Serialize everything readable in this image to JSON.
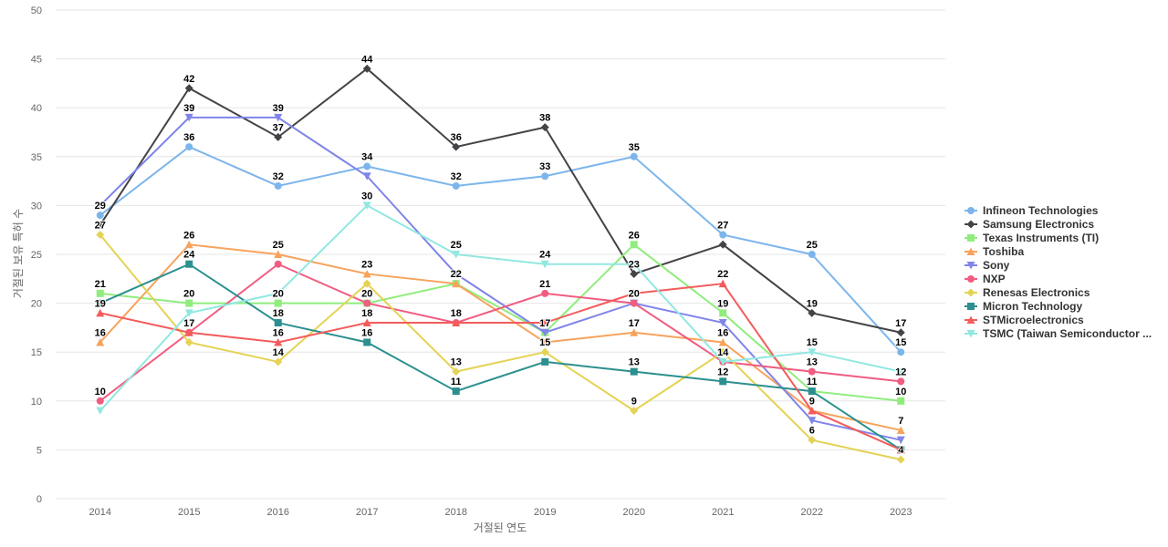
{
  "chart_data": {
    "type": "line",
    "title": "",
    "xlabel": "거절된 연도",
    "ylabel": "거절된 보유 특허 수",
    "ylim": [
      0,
      50
    ],
    "yticks": [
      0,
      5,
      10,
      15,
      20,
      25,
      30,
      35,
      40,
      45,
      50
    ],
    "grid": true,
    "legend_position": "right",
    "categories": [
      "2014",
      "2015",
      "2016",
      "2017",
      "2018",
      "2019",
      "2020",
      "2021",
      "2022",
      "2023"
    ],
    "series": [
      {
        "name": "Infineon Technologies",
        "color": "#7cb5ec",
        "marker": "circle",
        "values": [
          29,
          36,
          32,
          34,
          32,
          33,
          35,
          27,
          25,
          15
        ]
      },
      {
        "name": "Samsung Electronics",
        "color": "#434348",
        "marker": "diamond",
        "values": [
          28,
          42,
          37,
          44,
          36,
          38,
          23,
          26,
          19,
          17
        ]
      },
      {
        "name": "Texas Instruments (TI)",
        "color": "#90ed7d",
        "marker": "square",
        "values": [
          21,
          20,
          20,
          20,
          22,
          17,
          26,
          19,
          11,
          10
        ]
      },
      {
        "name": "Toshiba",
        "color": "#f7a35c",
        "marker": "triangle",
        "values": [
          16,
          26,
          25,
          23,
          22,
          16,
          17,
          16,
          9,
          7
        ]
      },
      {
        "name": "Sony",
        "color": "#8085e9",
        "marker": "triangle-down",
        "values": [
          30,
          39,
          39,
          33,
          23,
          17,
          20,
          18,
          8,
          6
        ]
      },
      {
        "name": "NXP",
        "color": "#f15c80",
        "marker": "circle",
        "values": [
          10,
          17,
          24,
          20,
          18,
          21,
          20,
          14,
          13,
          12
        ]
      },
      {
        "name": "Renesas Electronics",
        "color": "#e4d354",
        "marker": "diamond",
        "values": [
          27,
          16,
          14,
          22,
          13,
          15,
          9,
          15,
          6,
          4
        ]
      },
      {
        "name": "Micron Technology",
        "color": "#2b908f",
        "marker": "square",
        "values": [
          20,
          24,
          18,
          16,
          11,
          14,
          13,
          12,
          11,
          5
        ]
      },
      {
        "name": "STMicroelectronics",
        "color": "#f45b5b",
        "marker": "triangle",
        "values": [
          19,
          17,
          16,
          18,
          18,
          18,
          21,
          22,
          9,
          5
        ]
      },
      {
        "name": "TSMC (Taiwan Semiconductor ...",
        "color": "#91e8e1",
        "marker": "triangle-down",
        "values": [
          9,
          19,
          21,
          30,
          25,
          24,
          24,
          14,
          15,
          13
        ]
      }
    ],
    "data_labels": [
      {
        "x": "2014",
        "text": "29"
      },
      {
        "x": "2014",
        "text": "27"
      },
      {
        "x": "2014",
        "text": "21"
      },
      {
        "x": "2014",
        "text": "19"
      },
      {
        "x": "2014",
        "text": "16"
      },
      {
        "x": "2014",
        "text": "10"
      },
      {
        "x": "2015",
        "text": "42"
      },
      {
        "x": "2015",
        "text": "39"
      },
      {
        "x": "2015",
        "text": "36"
      },
      {
        "x": "2015",
        "text": "26"
      },
      {
        "x": "2015",
        "text": "24"
      },
      {
        "x": "2015",
        "text": "20"
      },
      {
        "x": "2015",
        "text": "17"
      },
      {
        "x": "2016",
        "text": "39"
      },
      {
        "x": "2016",
        "text": "37"
      },
      {
        "x": "2016",
        "text": "32"
      },
      {
        "x": "2016",
        "text": "25"
      },
      {
        "x": "2016",
        "text": "20"
      },
      {
        "x": "2016",
        "text": "18"
      },
      {
        "x": "2016",
        "text": "16"
      },
      {
        "x": "2016",
        "text": "14"
      },
      {
        "x": "2017",
        "text": "44"
      },
      {
        "x": "2017",
        "text": "34"
      },
      {
        "x": "2017",
        "text": "30"
      },
      {
        "x": "2017",
        "text": "23"
      },
      {
        "x": "2017",
        "text": "20"
      },
      {
        "x": "2017",
        "text": "18"
      },
      {
        "x": "2017",
        "text": "16"
      },
      {
        "x": "2018",
        "text": "36"
      },
      {
        "x": "2018",
        "text": "32"
      },
      {
        "x": "2018",
        "text": "25"
      },
      {
        "x": "2018",
        "text": "22"
      },
      {
        "x": "2018",
        "text": "18"
      },
      {
        "x": "2018",
        "text": "13"
      },
      {
        "x": "2018",
        "text": "11"
      },
      {
        "x": "2019",
        "text": "38"
      },
      {
        "x": "2019",
        "text": "33"
      },
      {
        "x": "2019",
        "text": "24"
      },
      {
        "x": "2019",
        "text": "21"
      },
      {
        "x": "2019",
        "text": "17"
      },
      {
        "x": "2019",
        "text": "15"
      },
      {
        "x": "2020",
        "text": "35"
      },
      {
        "x": "2020",
        "text": "26"
      },
      {
        "x": "2020",
        "text": "23"
      },
      {
        "x": "2020",
        "text": "20"
      },
      {
        "x": "2020",
        "text": "17"
      },
      {
        "x": "2020",
        "text": "13"
      },
      {
        "x": "2020",
        "text": "9"
      },
      {
        "x": "2021",
        "text": "27"
      },
      {
        "x": "2021",
        "text": "22"
      },
      {
        "x": "2021",
        "text": "19"
      },
      {
        "x": "2021",
        "text": "16"
      },
      {
        "x": "2021",
        "text": "14"
      },
      {
        "x": "2021",
        "text": "12"
      },
      {
        "x": "2022",
        "text": "25"
      },
      {
        "x": "2022",
        "text": "19"
      },
      {
        "x": "2022",
        "text": "15"
      },
      {
        "x": "2022",
        "text": "13"
      },
      {
        "x": "2022",
        "text": "11"
      },
      {
        "x": "2022",
        "text": "9"
      },
      {
        "x": "2022",
        "text": "6"
      },
      {
        "x": "2023",
        "text": "17"
      },
      {
        "x": "2023",
        "text": "15"
      },
      {
        "x": "2023",
        "text": "12"
      },
      {
        "x": "2023",
        "text": "10"
      },
      {
        "x": "2023",
        "text": "7"
      },
      {
        "x": "2023",
        "text": "4"
      }
    ]
  }
}
